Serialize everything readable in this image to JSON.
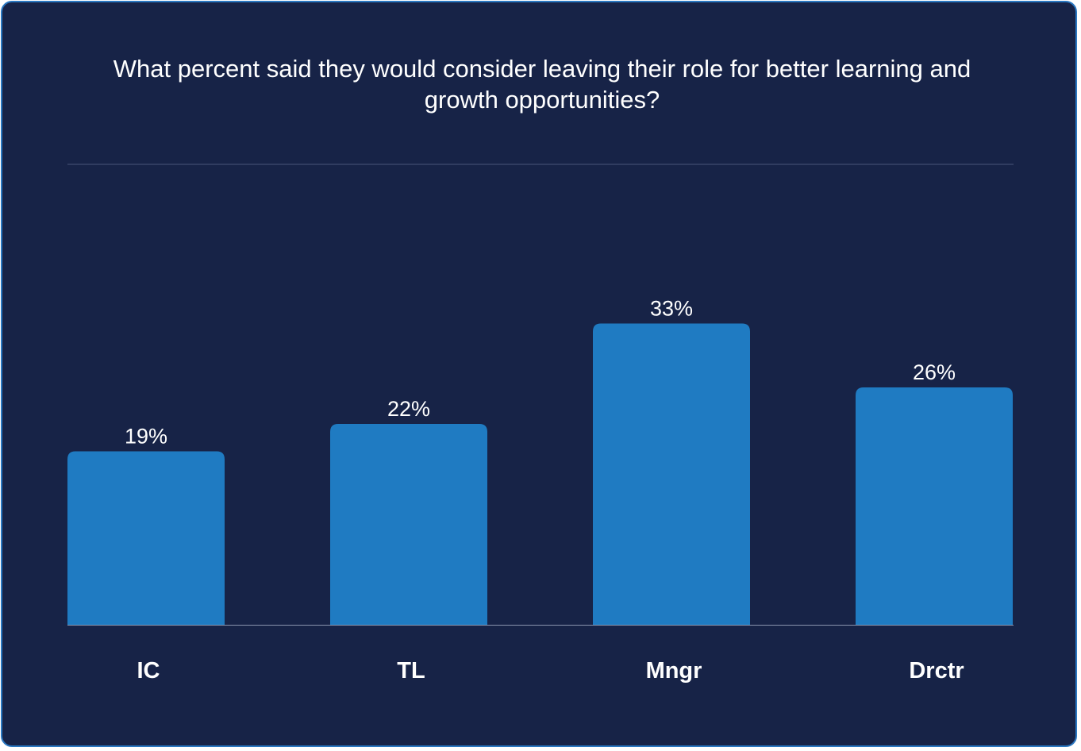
{
  "chart_data": {
    "type": "bar",
    "title": "What percent said they would consider leaving their role for better learning and growth opportunities?",
    "categories": [
      "IC",
      "TL",
      "Mngr",
      "Drctr"
    ],
    "values": [
      19,
      22,
      33,
      26
    ],
    "value_labels": [
      "19%",
      "22%",
      "33%",
      "26%"
    ],
    "xlabel": "",
    "ylabel": "",
    "ylim": [
      0,
      45
    ],
    "grid": false,
    "bar_color": "#1f7bc2",
    "background_color": "#172347",
    "text_color": "#ffffff"
  }
}
